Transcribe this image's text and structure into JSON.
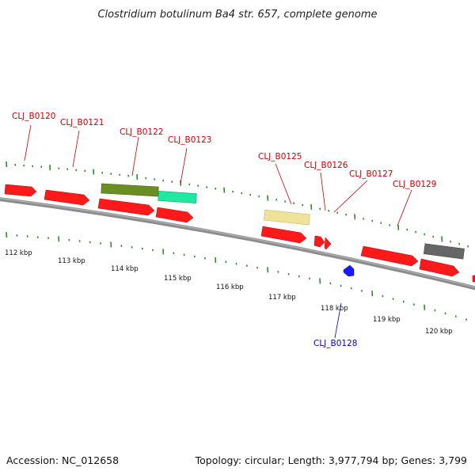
{
  "title": "Clostridium botulinum Ba4 str. 657, complete genome",
  "footer": {
    "accession": "Accession: NC_012658",
    "summary": "Topology: circular; Length: 3,977,794 bp; Genes: 3,799"
  },
  "colors": {
    "forward_cds": "#ff1a1a",
    "backbone": "#808080",
    "tick": "#2e8b2e",
    "label_top": "#cc0000",
    "label_bottom": "#0000cc",
    "reverse_marker": "#1a1aff"
  },
  "scale_labels": [
    "112 kbp",
    "113 kbp",
    "114 kbp",
    "115 kbp",
    "116 kbp",
    "117 kbp",
    "118 kbp",
    "119 kbp",
    "120 kbp"
  ],
  "gene_labels_top": [
    "CLJ_B0120",
    "CLJ_B0121",
    "CLJ_B0122",
    "CLJ_B0123",
    "CLJ_B0125",
    "CLJ_B0126",
    "CLJ_B0127",
    "CLJ_B0129"
  ],
  "gene_labels_bottom": [
    "CLJ_B0128"
  ]
}
